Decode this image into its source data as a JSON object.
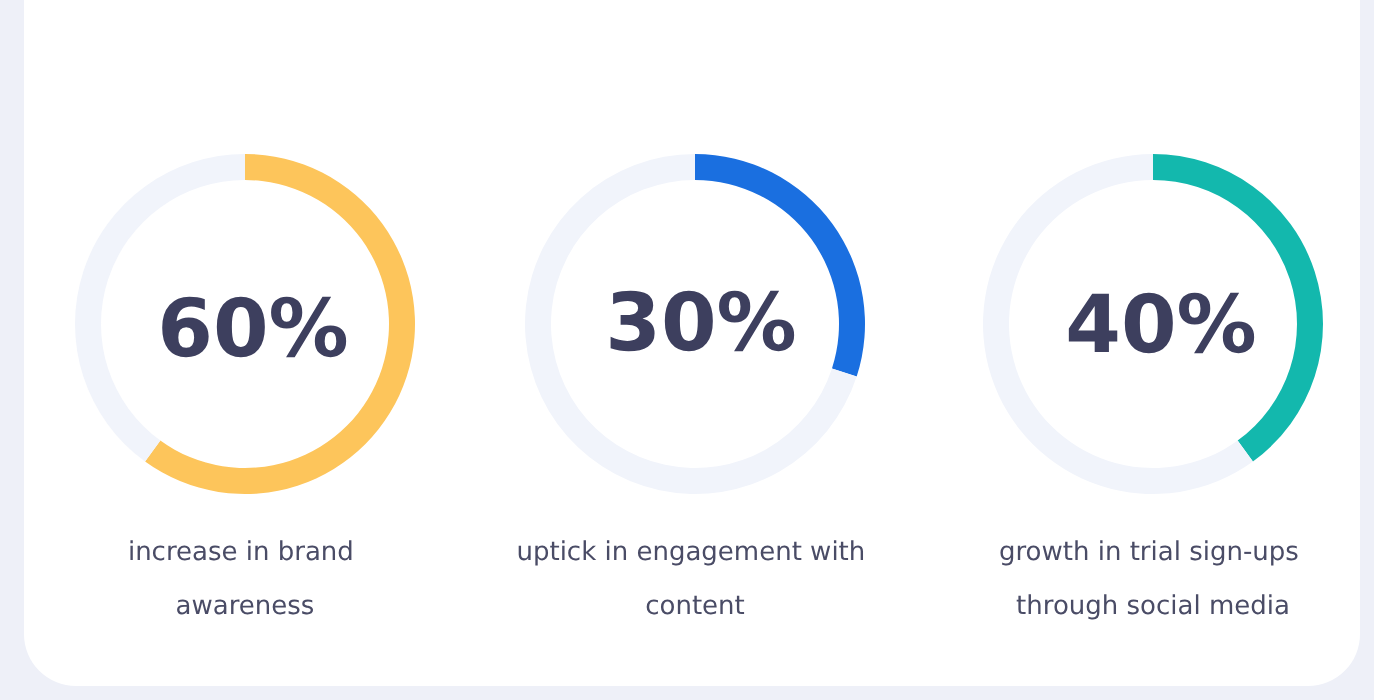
{
  "chart_data": [
    {
      "type": "donut",
      "title": "increase in brand awareness",
      "categories": [
        null,
        null
      ],
      "values": [
        60,
        40
      ],
      "colors": [
        "#fdc55b",
        "#f1f4fb"
      ],
      "value_labels": [
        "60%",
        null
      ]
    },
    {
      "type": "donut",
      "title": "uptick in engagement with content",
      "categories": [
        null,
        null
      ],
      "values": [
        30,
        70
      ],
      "colors": [
        "#1a6fe0",
        "#f1f4fb"
      ],
      "value_labels": [
        "30%",
        null
      ]
    },
    {
      "type": "donut",
      "title": "growth in trial sign-ups through social media",
      "categories": [
        null,
        null
      ],
      "values": [
        40,
        60
      ],
      "colors": [
        "#13b8ad",
        "#f1f4fb"
      ],
      "value_labels": [
        "40%",
        null
      ]
    }
  ]
}
